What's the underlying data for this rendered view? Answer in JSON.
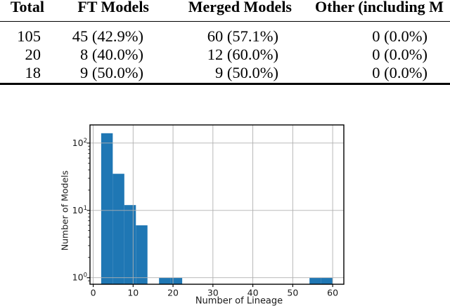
{
  "table": {
    "headers": [
      "Total",
      "FT Models",
      "Merged Models",
      "Other (including M"
    ],
    "rows": [
      {
        "cells": [
          "105",
          "45 (42.9%)",
          "60 (57.1%)",
          "0 (0.0%)"
        ]
      },
      {
        "cells": [
          "20",
          "8 (40.0%)",
          "12 (60.0%)",
          "0 (0.0%)"
        ]
      },
      {
        "cells": [
          "18",
          "9 (50.0%)",
          "9 (50.0%)",
          "0 (0.0%)"
        ]
      }
    ]
  },
  "chart_data": {
    "type": "bar",
    "subtype": "histogram",
    "title": "",
    "xlabel": "Number of Lineage",
    "ylabel": "Number of Models",
    "y_scale": "log",
    "grid": true,
    "legend": "none",
    "xlim": [
      -0.8,
      62.8
    ],
    "ylim": [
      0.8,
      186
    ],
    "x_ticks": [
      0,
      10,
      20,
      30,
      40,
      50,
      60
    ],
    "y_ticks": [
      1,
      10,
      100
    ],
    "y_tick_labels": [
      "10⁰",
      "10¹",
      "10²"
    ],
    "bar_color": "#1f77b4",
    "grid_color": "#b0b0b0",
    "spine_color": "#000000",
    "text_color": "#1a1a1a",
    "bins": [
      {
        "start": 2.0,
        "end": 4.9,
        "count": 140
      },
      {
        "start": 4.9,
        "end": 7.8,
        "count": 35
      },
      {
        "start": 7.8,
        "end": 10.7,
        "count": 12
      },
      {
        "start": 10.7,
        "end": 13.6,
        "count": 6
      },
      {
        "start": 16.5,
        "end": 19.4,
        "count": 1
      },
      {
        "start": 19.4,
        "end": 22.3,
        "count": 1
      },
      {
        "start": 54.2,
        "end": 57.1,
        "count": 1
      },
      {
        "start": 57.1,
        "end": 60.0,
        "count": 1
      }
    ]
  }
}
